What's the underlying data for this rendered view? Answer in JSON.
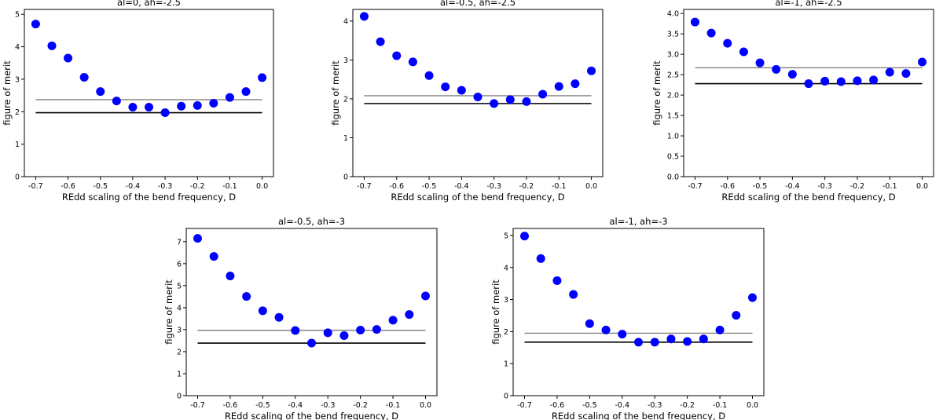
{
  "colors": {
    "points": "#0000ff",
    "minimum_line": "#000000",
    "reference_line": "#808080",
    "axes": "#000000"
  },
  "chart_data": [
    {
      "type": "scatter",
      "title": "al=0, ah=-2.5",
      "xlabel": "REdd scaling of the bend frequency, D",
      "ylabel": "figure of merit",
      "xlim": [
        -0.735,
        0.035
      ],
      "ylim": [
        0,
        5.15
      ],
      "xticks": [
        "-0.7",
        "-0.6",
        "-0.5",
        "-0.4",
        "-0.3",
        "-0.2",
        "-0.1",
        "0.0"
      ],
      "yticks": [
        "0",
        "1",
        "2",
        "3",
        "4",
        "5"
      ],
      "x": [
        -0.7,
        -0.65,
        -0.6,
        -0.55,
        -0.5,
        -0.45,
        -0.4,
        -0.35,
        -0.3,
        -0.25,
        -0.2,
        -0.15,
        -0.1,
        -0.05,
        0.0
      ],
      "y": [
        4.7,
        4.03,
        3.65,
        3.06,
        2.62,
        2.33,
        2.14,
        2.14,
        1.97,
        2.17,
        2.19,
        2.26,
        2.44,
        2.62,
        3.05
      ],
      "hlines": [
        2.37,
        1.97
      ],
      "grid": false
    },
    {
      "type": "scatter",
      "title": "al=-0.5, ah=-2.5",
      "xlabel": "REdd scaling of the bend frequency, D",
      "ylabel": "figure of merit",
      "xlim": [
        -0.735,
        0.035
      ],
      "ylim": [
        0,
        4.3
      ],
      "xticks": [
        "-0.7",
        "-0.6",
        "-0.5",
        "-0.4",
        "-0.3",
        "-0.2",
        "-0.1",
        "0.0"
      ],
      "yticks": [
        "0",
        "1",
        "2",
        "3",
        "4"
      ],
      "x": [
        -0.7,
        -0.65,
        -0.6,
        -0.55,
        -0.5,
        -0.45,
        -0.4,
        -0.35,
        -0.3,
        -0.25,
        -0.2,
        -0.15,
        -0.1,
        -0.05,
        0.0
      ],
      "y": [
        4.12,
        3.47,
        3.11,
        2.95,
        2.6,
        2.31,
        2.22,
        2.05,
        1.88,
        1.98,
        1.93,
        2.12,
        2.32,
        2.39,
        2.72
      ],
      "hlines": [
        2.08,
        1.88
      ],
      "grid": false
    },
    {
      "type": "scatter",
      "title": "al=-1, ah=-2.5",
      "xlabel": "REdd scaling of the bend frequency, D",
      "ylabel": "figure of merit",
      "xlim": [
        -0.735,
        0.035
      ],
      "ylim": [
        0,
        4.1
      ],
      "xticks": [
        "-0.7",
        "-0.6",
        "-0.5",
        "-0.4",
        "-0.3",
        "-0.2",
        "-0.1",
        "0.0"
      ],
      "yticks": [
        "0.0",
        "0.5",
        "1.0",
        "1.5",
        "2.0",
        "2.5",
        "3.0",
        "3.5",
        "4.0"
      ],
      "x": [
        -0.7,
        -0.65,
        -0.6,
        -0.55,
        -0.5,
        -0.45,
        -0.4,
        -0.35,
        -0.3,
        -0.25,
        -0.2,
        -0.15,
        -0.1,
        -0.05,
        0.0
      ],
      "y": [
        3.79,
        3.52,
        3.27,
        3.06,
        2.79,
        2.63,
        2.51,
        2.28,
        2.34,
        2.33,
        2.35,
        2.37,
        2.56,
        2.53,
        2.81
      ],
      "hlines": [
        2.67,
        2.28
      ],
      "grid": false
    },
    {
      "type": "scatter",
      "title": "al=-0.5, ah=-3",
      "xlabel": "REdd scaling of the bend frequency, D",
      "ylabel": "figure of merit",
      "xlim": [
        -0.735,
        0.035
      ],
      "ylim": [
        0,
        7.6
      ],
      "xticks": [
        "-0.7",
        "-0.6",
        "-0.5",
        "-0.4",
        "-0.3",
        "-0.2",
        "-0.1",
        "0.0"
      ],
      "yticks": [
        "0",
        "1",
        "2",
        "3",
        "4",
        "5",
        "6",
        "7"
      ],
      "x": [
        -0.7,
        -0.65,
        -0.6,
        -0.55,
        -0.5,
        -0.45,
        -0.4,
        -0.35,
        -0.3,
        -0.25,
        -0.2,
        -0.15,
        -0.1,
        -0.05,
        0.0
      ],
      "y": [
        7.15,
        6.33,
        5.44,
        4.51,
        3.86,
        3.56,
        2.96,
        2.39,
        2.86,
        2.73,
        2.98,
        3.01,
        3.43,
        3.69,
        4.53
      ],
      "hlines": [
        2.97,
        2.39
      ],
      "grid": false
    },
    {
      "type": "scatter",
      "title": "al=-1, ah=-3",
      "xlabel": "REdd scaling of the bend frequency, D",
      "ylabel": "figure of merit",
      "xlim": [
        -0.735,
        0.035
      ],
      "ylim": [
        0,
        5.22
      ],
      "xticks": [
        "-0.7",
        "-0.6",
        "-0.5",
        "-0.4",
        "-0.3",
        "-0.2",
        "-0.1",
        "0.0"
      ],
      "yticks": [
        "0",
        "1",
        "2",
        "3",
        "4",
        "5"
      ],
      "x": [
        -0.7,
        -0.65,
        -0.6,
        -0.55,
        -0.5,
        -0.45,
        -0.4,
        -0.35,
        -0.3,
        -0.25,
        -0.2,
        -0.15,
        -0.1,
        -0.05,
        0.0
      ],
      "y": [
        4.98,
        4.28,
        3.59,
        3.16,
        2.25,
        2.05,
        1.92,
        1.67,
        1.67,
        1.77,
        1.69,
        1.77,
        2.05,
        2.51,
        3.06
      ],
      "hlines": [
        1.95,
        1.67
      ],
      "grid": false
    }
  ]
}
